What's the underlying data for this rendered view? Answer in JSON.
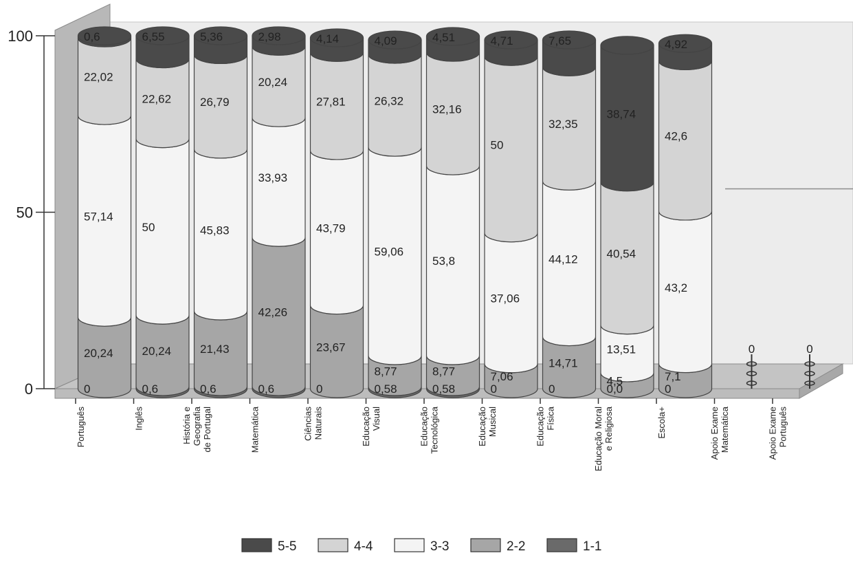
{
  "chart_data": {
    "type": "bar",
    "stacked": true,
    "style": "3d-cylinder",
    "y_ticks": [
      "0",
      "50",
      "100"
    ],
    "ylim": [
      0,
      100
    ],
    "legend_position": "bottom",
    "categories": [
      "Português",
      "Inglês",
      "História e Geografia de Portugal",
      "Matemática",
      "Ciências Naturais",
      "Educação Visual",
      "Educação Tecnológica",
      "Educação Musical",
      "Educação Física",
      "Educação Moral e Religiosa",
      "Escola+",
      "Apoio Exame Matemática",
      "Apoio Exame Português"
    ],
    "category_label_lines": [
      [
        "Português"
      ],
      [
        "Inglês"
      ],
      [
        "História e",
        "Geografia",
        "de Portugal"
      ],
      [
        "Matemática"
      ],
      [
        "Ciências",
        "Naturais"
      ],
      [
        "Educação",
        "Visual"
      ],
      [
        "Educação",
        "Tecnológica"
      ],
      [
        "Educação",
        "Musical"
      ],
      [
        "Educação",
        "Física"
      ],
      [
        "Educação Moral",
        "e Religiosa"
      ],
      [
        "Escola+"
      ],
      [
        "Apoio Exame",
        "Matemática"
      ],
      [
        "Apoio Exame",
        "Português"
      ]
    ],
    "series": [
      {
        "name": "1-1",
        "color": "#6a6a6a",
        "values": [
          0,
          0.6,
          0.6,
          0.6,
          0,
          0.58,
          0.58,
          0,
          0,
          0,
          0,
          0,
          0
        ],
        "labels": [
          "0",
          "0,6",
          "0,6",
          "0,6",
          "0",
          "0,58",
          "0,58",
          "0",
          "0",
          "0,0",
          "0",
          "0",
          "0"
        ]
      },
      {
        "name": "2-2",
        "color": "#a6a6a6",
        "values": [
          20.24,
          20.24,
          21.43,
          42.26,
          23.67,
          8.77,
          8.77,
          7.06,
          14.71,
          4.5,
          7.1,
          0,
          0
        ],
        "labels": [
          "20,24",
          "20,24",
          "21,43",
          "42,26",
          "23,67",
          "8,77",
          "8,77",
          "7,06",
          "14,71",
          "4,5",
          "7,1",
          "0",
          "0"
        ]
      },
      {
        "name": "3-3",
        "color": "#f4f4f4",
        "values": [
          57.14,
          50,
          45.83,
          33.93,
          43.79,
          59.06,
          53.8,
          37.06,
          44.12,
          13.51,
          43.2,
          0,
          0
        ],
        "labels": [
          "57,14",
          "50",
          "45,83",
          "33,93",
          "43,79",
          "59,06",
          "53,8",
          "37,06",
          "44,12",
          "13,51",
          "43,2",
          "0",
          "0"
        ]
      },
      {
        "name": "4-4",
        "color": "#d4d4d4",
        "values": [
          22.02,
          22.62,
          26.79,
          20.24,
          27.81,
          26.32,
          32.16,
          50,
          32.35,
          40.54,
          42.6,
          0,
          0
        ],
        "labels": [
          "22,02",
          "22,62",
          "26,79",
          "20,24",
          "27,81",
          "26,32",
          "32,16",
          "50",
          "32,35",
          "40,54",
          "42,6",
          "0",
          "0"
        ]
      },
      {
        "name": "5-5",
        "color": "#4a4a4a",
        "values": [
          0.6,
          6.55,
          5.36,
          2.98,
          4.14,
          4.09,
          4.51,
          4.71,
          7.65,
          38.74,
          4.92,
          0,
          0
        ],
        "labels": [
          "0,6",
          "6,55",
          "5,36",
          "2,98",
          "4,14",
          "4,09",
          "4,51",
          "4,71",
          "7,65",
          "38,74",
          "4,92",
          "0",
          "0"
        ]
      }
    ],
    "legend": [
      {
        "label": "5-5",
        "color": "#4a4a4a"
      },
      {
        "label": "4-4",
        "color": "#d4d4d4"
      },
      {
        "label": "3-3",
        "color": "#f4f4f4"
      },
      {
        "label": "2-2",
        "color": "#a6a6a6"
      },
      {
        "label": "1-1",
        "color": "#6a6a6a"
      }
    ]
  }
}
